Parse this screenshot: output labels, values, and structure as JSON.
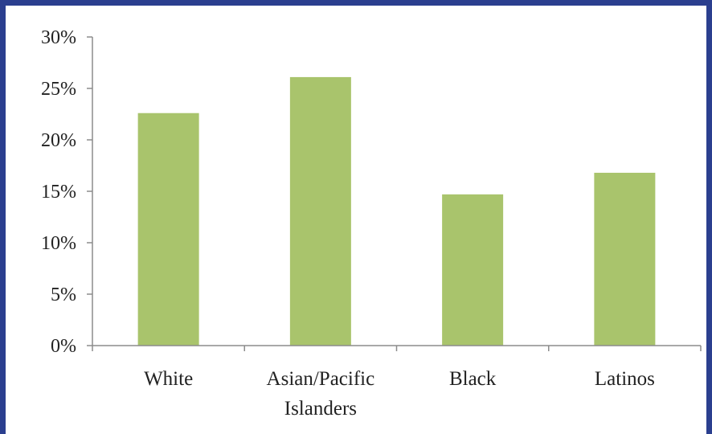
{
  "chart_data": {
    "type": "bar",
    "title": "",
    "xlabel": "",
    "ylabel": "",
    "categories": [
      [
        "White"
      ],
      [
        "Asian/Pacific",
        "Islanders"
      ],
      [
        "Black"
      ],
      [
        "Latinos"
      ]
    ],
    "values": [
      22.6,
      26.1,
      14.7,
      16.8
    ],
    "ylim": [
      0,
      30
    ],
    "yticks": [
      0,
      5,
      10,
      15,
      20,
      25,
      30
    ],
    "ytick_labels": [
      "0%",
      "5%",
      "10%",
      "15%",
      "20%",
      "25%",
      "30%"
    ],
    "grid": false,
    "legend": "none",
    "bar_color": "#a9c46c",
    "axis_color": "#8c8c8c",
    "frame_color": "#2b3f8f"
  }
}
